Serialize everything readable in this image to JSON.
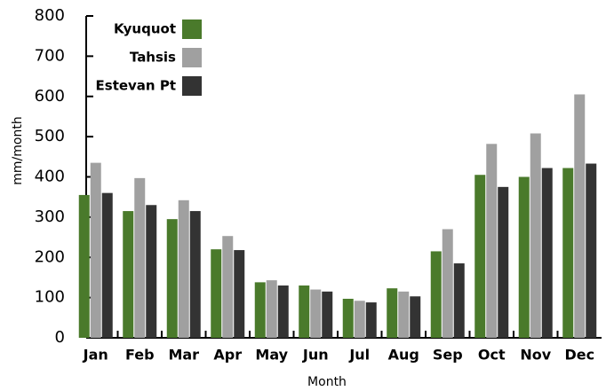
{
  "chart_data": {
    "type": "bar",
    "x_label": "Month",
    "y_label": "mm/month",
    "categories": [
      "Jan",
      "Feb",
      "Mar",
      "Apr",
      "May",
      "Jun",
      "Jul",
      "Aug",
      "Sep",
      "Oct",
      "Nov",
      "Dec"
    ],
    "series": [
      {
        "name": "Kyuquot",
        "color": "#4a7a2b",
        "values": [
          355,
          315,
          295,
          220,
          138,
          130,
          97,
          123,
          215,
          405,
          400,
          422
        ]
      },
      {
        "name": "Tahsis",
        "color": "#a0a0a0",
        "values": [
          435,
          397,
          342,
          253,
          143,
          120,
          92,
          115,
          270,
          482,
          508,
          605
        ]
      },
      {
        "name": "Estevan Pt",
        "color": "#333333",
        "values": [
          360,
          330,
          315,
          218,
          130,
          115,
          88,
          103,
          185,
          375,
          422,
          433
        ]
      }
    ],
    "ylim": [
      0,
      800
    ],
    "yticks": [
      0,
      100,
      200,
      300,
      400,
      500,
      600,
      700,
      800
    ],
    "legend": "upper left"
  }
}
